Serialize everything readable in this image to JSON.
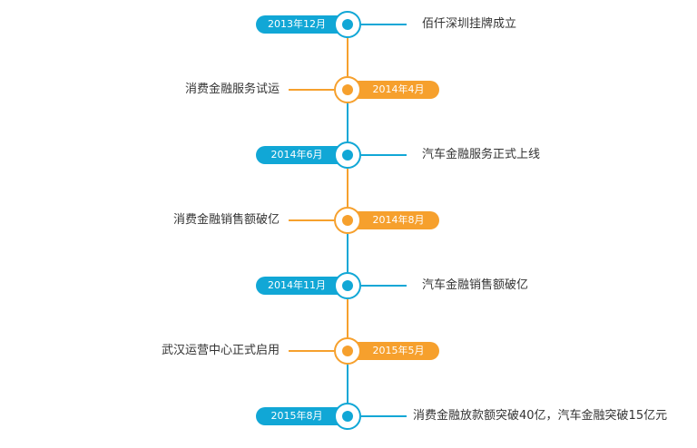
{
  "colors": {
    "blue": "#11a7d6",
    "orange": "#f6a02d"
  },
  "events": [
    {
      "date": "2013年12月",
      "text": "佰仟深圳挂牌成立",
      "color": "blue"
    },
    {
      "date": "2014年4月",
      "text": "消费金融服务试运",
      "color": "orange"
    },
    {
      "date": "2014年6月",
      "text": "汽车金融服务正式上线",
      "color": "blue"
    },
    {
      "date": "2014年8月",
      "text": "消费金融销售额破亿",
      "color": "orange"
    },
    {
      "date": "2014年11月",
      "text": "汽车金融销售额破亿",
      "color": "blue"
    },
    {
      "date": "2015年5月",
      "text": "武汉运营中心正式启用",
      "color": "orange"
    },
    {
      "date": "2015年8月",
      "text": "消费金融放款额突破40亿，汽车金融突破15亿元",
      "color": "blue"
    }
  ]
}
